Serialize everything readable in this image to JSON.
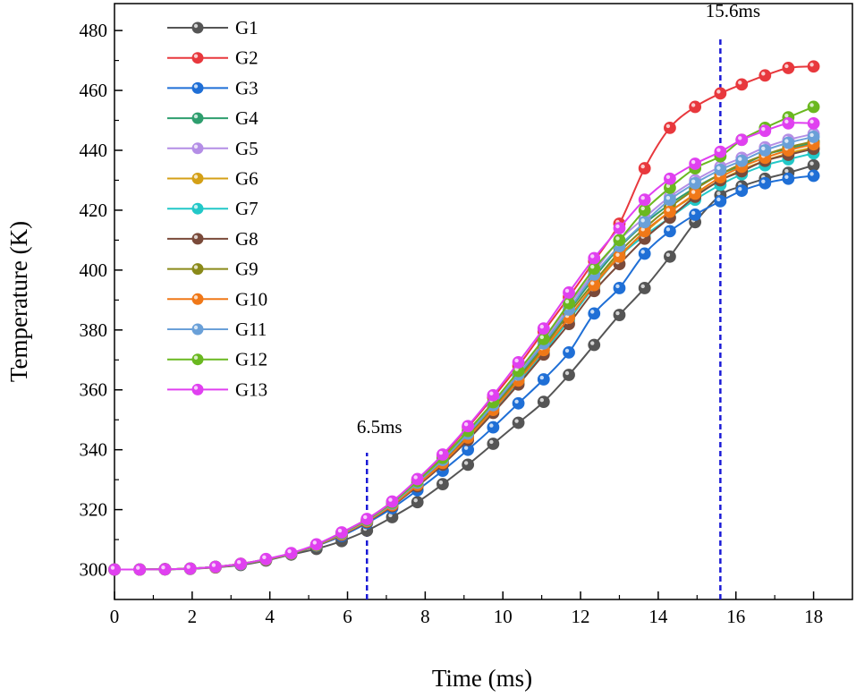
{
  "chart_data": {
    "type": "line",
    "xlabel": "Time (ms)",
    "ylabel": "Temperature (K)",
    "xlim": [
      0,
      19
    ],
    "ylim": [
      290,
      489
    ],
    "xticks": [
      0,
      2,
      4,
      6,
      8,
      10,
      12,
      14,
      16,
      18
    ],
    "yticks": [
      300,
      320,
      340,
      360,
      380,
      400,
      420,
      440,
      460,
      480
    ],
    "grid": false,
    "legend_position": "top-left",
    "x": [
      0,
      0.65,
      1.3,
      1.95,
      2.6,
      3.25,
      3.9,
      4.55,
      5.2,
      5.85,
      6.5,
      7.15,
      7.8,
      8.45,
      9.1,
      9.75,
      10.4,
      11.05,
      11.7,
      12.35,
      13.0,
      13.65,
      14.3,
      14.95,
      15.6,
      16.15,
      16.75,
      17.35,
      18.0
    ],
    "series": [
      {
        "name": "G1",
        "color": "#555555",
        "values": [
          300,
          300,
          300.1,
          300.2,
          300.7,
          301.5,
          303,
          305,
          306.9,
          309.5,
          313,
          317.5,
          322.5,
          328.5,
          335,
          342,
          349,
          356,
          365,
          375,
          385,
          394,
          404.5,
          416,
          425,
          428,
          430.5,
          432.5,
          435
        ]
      },
      {
        "name": "G2",
        "color": "#e8383d",
        "values": [
          300,
          300,
          300.1,
          300.3,
          300.9,
          301.9,
          303.4,
          305.4,
          308.3,
          312.3,
          316.7,
          322.5,
          330,
          338,
          347.5,
          357.5,
          368,
          379.5,
          391,
          403,
          415.5,
          434,
          447.5,
          454.5,
          459,
          462,
          465,
          467.5,
          468
        ]
      },
      {
        "name": "G3",
        "color": "#1f6fd6",
        "values": [
          300,
          300,
          300.1,
          300.3,
          300.8,
          301.7,
          303.2,
          305.2,
          307.9,
          311.2,
          315.5,
          320.5,
          326.5,
          333,
          340,
          347.5,
          355.5,
          363.5,
          372.5,
          385.5,
          394,
          405.5,
          413,
          418.5,
          423,
          426.5,
          429,
          430.5,
          431.5
        ]
      },
      {
        "name": "G4",
        "color": "#2e9e6e",
        "values": [
          300,
          300,
          300.1,
          300.3,
          300.9,
          301.8,
          303.3,
          305.3,
          308.1,
          311.9,
          316.3,
          321.8,
          328.8,
          336.3,
          345,
          354.4,
          364.5,
          374.9,
          386.3,
          397.5,
          407.5,
          415.5,
          422,
          427.5,
          432,
          435,
          438.5,
          440.5,
          442.5
        ]
      },
      {
        "name": "G5",
        "color": "#b48ee6",
        "values": [
          300,
          300,
          300.1,
          300.3,
          300.9,
          301.8,
          303.4,
          305.4,
          308.2,
          312.1,
          316.5,
          322.2,
          329.3,
          337.0,
          345.9,
          355.4,
          365.7,
          376.2,
          388.0,
          399.5,
          410,
          417.5,
          424.5,
          430,
          434.5,
          437.5,
          441,
          443.5,
          445.5
        ]
      },
      {
        "name": "G6",
        "color": "#d4a017",
        "values": [
          300,
          300,
          300.1,
          300.3,
          300.8,
          301.8,
          303.3,
          305.3,
          308.1,
          311.7,
          316.1,
          321.5,
          328.3,
          335.6,
          344.1,
          353.3,
          363.1,
          373.3,
          384.1,
          395,
          405,
          412.5,
          419.5,
          425,
          430,
          433.5,
          436.5,
          439,
          441
        ]
      },
      {
        "name": "G7",
        "color": "#22c8c8",
        "values": [
          300,
          300,
          300.1,
          300.3,
          300.8,
          301.7,
          303.3,
          305.3,
          308.0,
          311.7,
          316.0,
          321.3,
          328.0,
          335.3,
          343.7,
          352.8,
          362.5,
          372.5,
          383.3,
          394.5,
          404.5,
          411.5,
          417.5,
          423.5,
          428.5,
          432,
          435,
          437,
          439
        ]
      },
      {
        "name": "G8",
        "color": "#7a4a3a",
        "values": [
          300,
          300,
          300.1,
          300.3,
          300.8,
          301.7,
          303.3,
          305.3,
          308.0,
          311.6,
          315.9,
          321.2,
          327.8,
          335,
          343.3,
          352.3,
          361.8,
          371.8,
          382,
          393,
          402,
          410.5,
          417.5,
          424.5,
          430,
          433,
          436.5,
          438.5,
          440.5
        ]
      },
      {
        "name": "G9",
        "color": "#8a8a1a",
        "values": [
          300,
          300,
          300.1,
          300.3,
          300.9,
          301.8,
          303.3,
          305.3,
          308.1,
          311.8,
          316.2,
          321.7,
          328.5,
          336.0,
          344.6,
          353.9,
          363.9,
          374.2,
          385.4,
          396,
          406,
          414,
          421,
          427,
          432,
          435.5,
          438.5,
          441,
          443
        ]
      },
      {
        "name": "G10",
        "color": "#f07818",
        "values": [
          300,
          300,
          300.1,
          300.3,
          300.8,
          301.8,
          303.3,
          305.3,
          308.1,
          311.7,
          316.1,
          321.5,
          328.3,
          335.6,
          344.1,
          353.3,
          363.1,
          373.3,
          384.1,
          395,
          404.5,
          413,
          419.5,
          425.5,
          431,
          434.5,
          437.5,
          440,
          442
        ]
      },
      {
        "name": "G11",
        "color": "#6aa0d8",
        "values": [
          300,
          300,
          300.1,
          300.3,
          300.9,
          301.8,
          303.4,
          305.4,
          308.2,
          312.0,
          316.4,
          322.0,
          329.0,
          336.6,
          345.4,
          354.9,
          365.1,
          375.5,
          386.8,
          398.5,
          408,
          416,
          423.5,
          429,
          433.5,
          436.5,
          440,
          442.5,
          444.5
        ]
      },
      {
        "name": "G12",
        "color": "#6ab820",
        "values": [
          300,
          300,
          300.1,
          300.3,
          300.9,
          301.9,
          303.4,
          305.4,
          308.2,
          312.2,
          316.6,
          322.3,
          329.5,
          337.3,
          346.3,
          355.9,
          366.3,
          377,
          388.9,
          400.5,
          410,
          420,
          427.5,
          434,
          438,
          443.5,
          447.5,
          451,
          454.5
        ]
      },
      {
        "name": "G13",
        "color": "#e040f0",
        "values": [
          300,
          300,
          300.1,
          300.3,
          300.9,
          301.9,
          303.5,
          305.5,
          308.4,
          312.4,
          316.9,
          322.7,
          330.2,
          338.4,
          347.9,
          358.2,
          369.2,
          380.5,
          392.5,
          404,
          414,
          423.5,
          430.5,
          435.5,
          439.5,
          443.5,
          446.5,
          449,
          449
        ]
      }
    ],
    "annotations": [
      {
        "label": "6.5ms",
        "x": 6.5,
        "y_from": 290,
        "y_to": 339
      },
      {
        "label": "15.6ms",
        "x": 15.6,
        "y_from": 290,
        "y_to": 478
      }
    ]
  }
}
